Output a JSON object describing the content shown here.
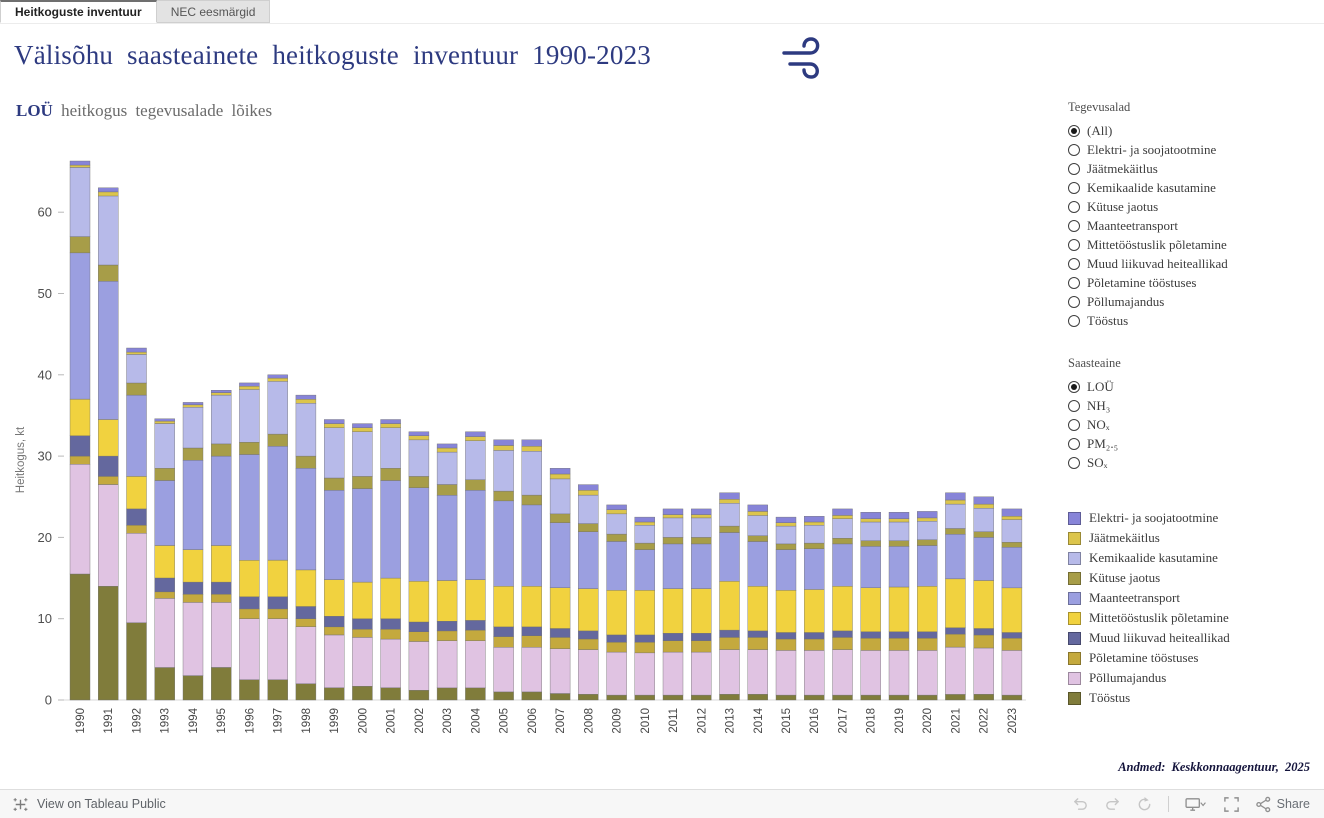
{
  "tabs": [
    {
      "label": "Heitkoguste inventuur",
      "active": true
    },
    {
      "label": "NEC eesmärgid",
      "active": false
    }
  ],
  "header": {
    "title": "Välisõhu saasteainete heitkoguste inventuur 1990-2023"
  },
  "subtitle": {
    "bold": "LOÜ",
    "rest": "heitkogus tegevusalade lõikes"
  },
  "filters": {
    "tegevusalad": {
      "label": "Tegevusalad",
      "selected": "(All)",
      "options": [
        "(All)",
        "Elektri- ja soojatootmine",
        "Jäätmekäitlus",
        "Kemikaalide kasutamine",
        "Kütuse jaotus",
        "Maanteetransport",
        "Mittetööstuslik põletamine",
        "Muud liikuvad heiteallikad",
        "Põletamine tööstuses",
        "Põllumajandus",
        "Tööstus"
      ]
    },
    "saasteaine": {
      "label": "Saasteaine",
      "selected": "LOÜ",
      "options": [
        "LOÜ",
        "NH₃",
        "NOₓ",
        "PM₂.₅",
        "SOₓ"
      ]
    }
  },
  "credit": "Andmed: Keskkonnaagentuur, 2025",
  "footer": {
    "left_label": "View on Tableau Public",
    "share_label": "Share",
    "icons": [
      "tableau-logo-icon",
      "undo-icon",
      "redo-icon",
      "reset-icon",
      "display-icon",
      "fullscreen-icon",
      "share-icon"
    ]
  },
  "chart_data": {
    "type": "bar",
    "stacked": true,
    "title": "LOÜ heitkogus tegevusalade lõikes",
    "xlabel": "",
    "ylabel": "Heitkogus, kt",
    "ylim": [
      0,
      67
    ],
    "yticks": [
      0,
      10,
      20,
      30,
      40,
      50,
      60
    ],
    "grid": false,
    "legend_position": "right",
    "categories": [
      "1990",
      "1991",
      "1992",
      "1993",
      "1994",
      "1995",
      "1996",
      "1997",
      "1998",
      "1999",
      "2000",
      "2001",
      "2002",
      "2003",
      "2004",
      "2005",
      "2006",
      "2007",
      "2008",
      "2009",
      "2010",
      "2011",
      "2012",
      "2013",
      "2014",
      "2015",
      "2016",
      "2017",
      "2018",
      "2019",
      "2020",
      "2021",
      "2022",
      "2023"
    ],
    "stack_order": [
      "Tööstus",
      "Põllumajandus",
      "Põletamine tööstuses",
      "Muud liikuvad heiteallikad",
      "Mittetööstuslik põletamine",
      "Maanteetransport",
      "Kütuse jaotus",
      "Kemikaalide kasutamine",
      "Jäätmekäitlus",
      "Elektri- ja soojatootmine"
    ],
    "series": [
      {
        "name": "Elektri- ja soojatootmine",
        "color": "#8784d8",
        "values": [
          0.5,
          0.5,
          0.5,
          0.3,
          0.3,
          0.3,
          0.4,
          0.4,
          0.5,
          0.5,
          0.5,
          0.5,
          0.5,
          0.5,
          0.6,
          0.7,
          0.8,
          0.7,
          0.7,
          0.6,
          0.6,
          0.7,
          0.7,
          0.8,
          0.8,
          0.7,
          0.7,
          0.8,
          0.8,
          0.8,
          0.8,
          0.9,
          0.9,
          0.9
        ]
      },
      {
        "name": "Jäätmekäitlus",
        "color": "#dcc54c",
        "values": [
          0.3,
          0.5,
          0.3,
          0.3,
          0.3,
          0.3,
          0.4,
          0.4,
          0.5,
          0.5,
          0.5,
          0.5,
          0.5,
          0.5,
          0.5,
          0.6,
          0.6,
          0.6,
          0.6,
          0.5,
          0.4,
          0.4,
          0.4,
          0.5,
          0.5,
          0.4,
          0.4,
          0.4,
          0.4,
          0.4,
          0.4,
          0.5,
          0.5,
          0.4
        ]
      },
      {
        "name": "Kemikaalide kasutamine",
        "color": "#b7bae9",
        "values": [
          8.5,
          8.5,
          3.5,
          5.5,
          5.0,
          6.0,
          6.5,
          6.5,
          6.5,
          6.2,
          5.5,
          5.0,
          4.5,
          4.0,
          4.8,
          5.0,
          5.4,
          4.3,
          3.5,
          2.5,
          2.2,
          2.4,
          2.4,
          2.8,
          2.5,
          2.2,
          2.2,
          2.4,
          2.3,
          2.3,
          2.3,
          3.0,
          2.9,
          2.8
        ]
      },
      {
        "name": "Kütuse jaotus",
        "color": "#a79d48",
        "values": [
          2.0,
          2.0,
          1.5,
          1.5,
          1.5,
          1.5,
          1.5,
          1.5,
          1.5,
          1.5,
          1.5,
          1.5,
          1.4,
          1.3,
          1.3,
          1.2,
          1.2,
          1.1,
          1.0,
          0.9,
          0.8,
          0.8,
          0.8,
          0.8,
          0.7,
          0.7,
          0.7,
          0.7,
          0.7,
          0.7,
          0.7,
          0.7,
          0.7,
          0.6
        ]
      },
      {
        "name": "Maanteetransport",
        "color": "#9b9fe0",
        "values": [
          18.0,
          17.0,
          10.0,
          8.0,
          11.0,
          11.0,
          13.0,
          14.0,
          12.5,
          11.0,
          11.5,
          12.0,
          11.5,
          10.5,
          11.0,
          10.5,
          10.0,
          8.0,
          7.0,
          6.0,
          5.0,
          5.5,
          5.5,
          6.0,
          5.5,
          5.0,
          5.0,
          5.2,
          5.1,
          5.0,
          5.0,
          5.5,
          5.3,
          5.0
        ]
      },
      {
        "name": "Mittetööstuslik põletamine",
        "color": "#f1d23f",
        "values": [
          4.5,
          4.5,
          4.0,
          4.0,
          4.0,
          4.5,
          4.5,
          4.5,
          4.5,
          4.5,
          4.5,
          5.0,
          5.0,
          5.0,
          5.0,
          5.0,
          5.0,
          5.0,
          5.2,
          5.5,
          5.5,
          5.5,
          5.5,
          6.0,
          5.5,
          5.2,
          5.3,
          5.5,
          5.4,
          5.5,
          5.6,
          6.0,
          5.9,
          5.5
        ]
      },
      {
        "name": "Muud liikuvad heiteallikad",
        "color": "#64689e",
        "values": [
          2.5,
          2.5,
          2.0,
          1.7,
          1.5,
          1.5,
          1.5,
          1.5,
          1.5,
          1.3,
          1.3,
          1.3,
          1.2,
          1.2,
          1.2,
          1.2,
          1.1,
          1.1,
          1.0,
          0.9,
          0.9,
          0.9,
          0.9,
          0.9,
          0.8,
          0.8,
          0.8,
          0.8,
          0.8,
          0.8,
          0.8,
          0.8,
          0.8,
          0.7
        ]
      },
      {
        "name": "Põletamine tööstuses",
        "color": "#c4a93e",
        "values": [
          1.0,
          1.0,
          1.0,
          0.8,
          1.0,
          1.0,
          1.2,
          1.2,
          1.0,
          1.0,
          1.0,
          1.2,
          1.2,
          1.2,
          1.3,
          1.3,
          1.4,
          1.4,
          1.3,
          1.2,
          1.3,
          1.4,
          1.4,
          1.5,
          1.5,
          1.4,
          1.4,
          1.5,
          1.5,
          1.5,
          1.5,
          1.6,
          1.6,
          1.5
        ]
      },
      {
        "name": "Põllumajandus",
        "color": "#e0c3e2",
        "values": [
          13.5,
          12.5,
          11.0,
          8.5,
          9.0,
          8.0,
          7.5,
          7.5,
          7.0,
          6.5,
          6.0,
          6.0,
          6.0,
          5.8,
          5.8,
          5.5,
          5.5,
          5.5,
          5.5,
          5.3,
          5.2,
          5.3,
          5.3,
          5.5,
          5.5,
          5.5,
          5.5,
          5.6,
          5.5,
          5.5,
          5.5,
          5.8,
          5.7,
          5.5
        ]
      },
      {
        "name": "Tööstus",
        "color": "#807c3b",
        "values": [
          15.5,
          14.0,
          9.5,
          4.0,
          3.0,
          4.0,
          2.5,
          2.5,
          2.0,
          1.5,
          1.7,
          1.5,
          1.2,
          1.5,
          1.5,
          1.0,
          1.0,
          0.8,
          0.7,
          0.6,
          0.6,
          0.6,
          0.6,
          0.7,
          0.7,
          0.6,
          0.6,
          0.6,
          0.6,
          0.6,
          0.6,
          0.7,
          0.7,
          0.6
        ]
      }
    ]
  }
}
